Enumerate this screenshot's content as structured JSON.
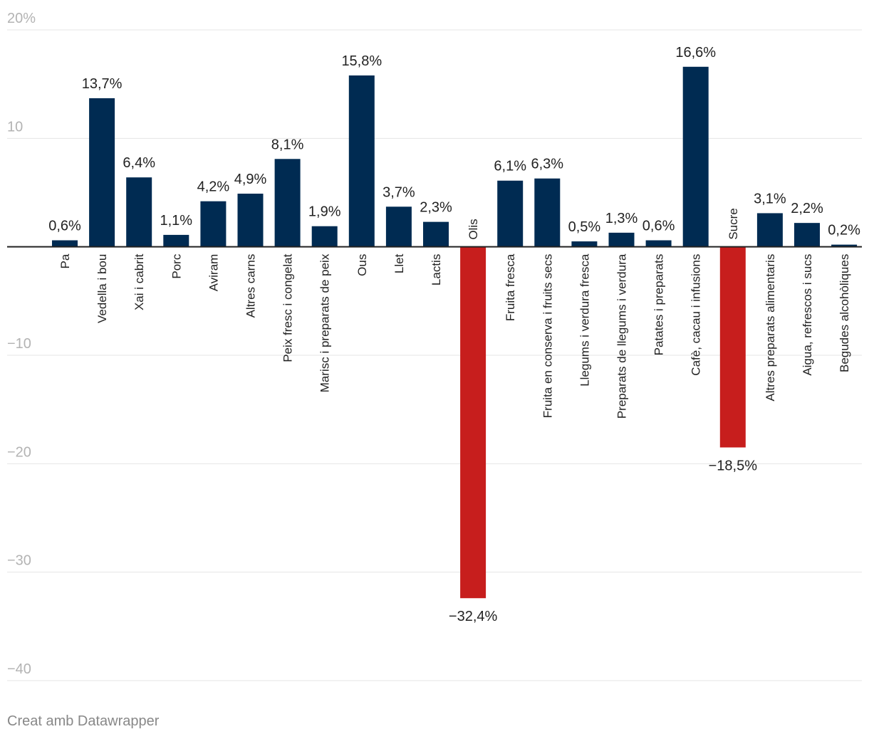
{
  "footer": "Creat amb Datawrapper",
  "colors": {
    "positive": "#002b52",
    "negative": "#c71e1d",
    "grid": "#e5e5e5",
    "tick": "#b3b3b3",
    "axis": "#222222"
  },
  "chart_data": {
    "type": "bar",
    "title": "",
    "xlabel": "",
    "ylabel": "",
    "ylim": [
      -40,
      20
    ],
    "y_ticks": [
      "20%",
      "10",
      "−10",
      "−20",
      "−30",
      "−40"
    ],
    "y_tick_values": [
      20,
      10,
      -10,
      -20,
      -30,
      -40
    ],
    "categories": [
      "Pa",
      "Vedella i bou",
      "Xai i cabrit",
      "Porc",
      "Aviram",
      "Altres carns",
      "Peix fresc i congelat",
      "Marisc i preparats de peix",
      "Ous",
      "Llet",
      "Lactis",
      "Olis",
      "Fruita fresca",
      "Fruita en conserva i fruits secs",
      "Llegums i verdura fresca",
      "Preparats de llegums i verdura",
      "Patates i preparats",
      "Cafè, cacau i infusions",
      "Sucre",
      "Altres preparats alimentaris",
      "Aigua, refrescos i sucs",
      "Begudes alcohòliques"
    ],
    "values": [
      0.6,
      13.7,
      6.4,
      1.1,
      4.2,
      4.9,
      8.1,
      1.9,
      15.8,
      3.7,
      2.3,
      -32.4,
      6.1,
      6.3,
      0.5,
      1.3,
      0.6,
      16.6,
      -18.5,
      3.1,
      2.2,
      0.2
    ],
    "value_labels": [
      "0,6%",
      "13,7%",
      "6,4%",
      "1,1%",
      "4,2%",
      "4,9%",
      "8,1%",
      "1,9%",
      "15,8%",
      "3,7%",
      "2,3%",
      "−32,4%",
      "6,1%",
      "6,3%",
      "0,5%",
      "1,3%",
      "0,6%",
      "16,6%",
      "−18,5%",
      "3,1%",
      "2,2%",
      "0,2%"
    ]
  }
}
